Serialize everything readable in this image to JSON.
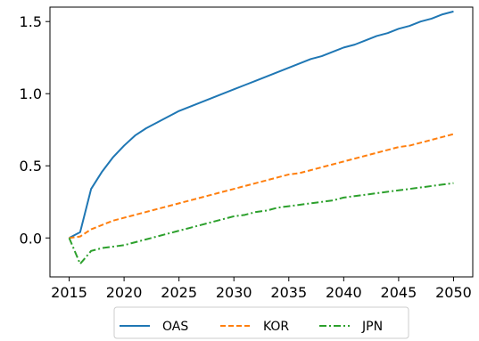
{
  "chart_data": {
    "type": "line",
    "title": "",
    "xlabel": "",
    "ylabel": "",
    "xlim": [
      2013.25,
      2051.75
    ],
    "ylim": [
      -0.27,
      1.6
    ],
    "x_ticks": [
      "2015",
      "2020",
      "2025",
      "2030",
      "2035",
      "2040",
      "2045",
      "2050"
    ],
    "x_tick_values": [
      2015,
      2020,
      2025,
      2030,
      2035,
      2040,
      2045,
      2050
    ],
    "y_ticks": [
      "0.0",
      "0.5",
      "1.0",
      "1.5"
    ],
    "y_tick_values": [
      0.0,
      0.5,
      1.0,
      1.5
    ],
    "grid": false,
    "legend": {
      "placement": "bottom-center-outside",
      "columns": 3
    },
    "x": [
      2015,
      2016,
      2017,
      2018,
      2019,
      2020,
      2021,
      2022,
      2023,
      2024,
      2025,
      2026,
      2027,
      2028,
      2029,
      2030,
      2031,
      2032,
      2033,
      2034,
      2035,
      2036,
      2037,
      2038,
      2039,
      2040,
      2041,
      2042,
      2043,
      2044,
      2045,
      2046,
      2047,
      2048,
      2049,
      2050
    ],
    "series": [
      {
        "name": "OAS",
        "color": "#1f77b4",
        "dash": "solid",
        "values": [
          0.0,
          0.04,
          0.34,
          0.46,
          0.56,
          0.64,
          0.71,
          0.76,
          0.8,
          0.84,
          0.88,
          0.91,
          0.94,
          0.97,
          1.0,
          1.03,
          1.06,
          1.09,
          1.12,
          1.15,
          1.18,
          1.21,
          1.24,
          1.26,
          1.29,
          1.32,
          1.34,
          1.37,
          1.4,
          1.42,
          1.45,
          1.47,
          1.5,
          1.52,
          1.55,
          1.57
        ]
      },
      {
        "name": "KOR",
        "color": "#ff7f0e",
        "dash": "dashed",
        "values": [
          0.0,
          0.01,
          0.06,
          0.09,
          0.12,
          0.14,
          0.16,
          0.18,
          0.2,
          0.22,
          0.24,
          0.26,
          0.28,
          0.3,
          0.32,
          0.34,
          0.36,
          0.38,
          0.4,
          0.42,
          0.44,
          0.45,
          0.47,
          0.49,
          0.51,
          0.53,
          0.55,
          0.57,
          0.59,
          0.61,
          0.63,
          0.64,
          0.66,
          0.68,
          0.7,
          0.72
        ]
      },
      {
        "name": "JPN",
        "color": "#2ca02c",
        "dash": "dashdot",
        "values": [
          0.0,
          -0.18,
          -0.09,
          -0.07,
          -0.06,
          -0.05,
          -0.03,
          -0.01,
          0.01,
          0.03,
          0.05,
          0.07,
          0.09,
          0.11,
          0.13,
          0.15,
          0.16,
          0.18,
          0.19,
          0.21,
          0.22,
          0.23,
          0.24,
          0.25,
          0.26,
          0.28,
          0.29,
          0.3,
          0.31,
          0.32,
          0.33,
          0.34,
          0.35,
          0.36,
          0.37,
          0.38
        ]
      }
    ]
  }
}
